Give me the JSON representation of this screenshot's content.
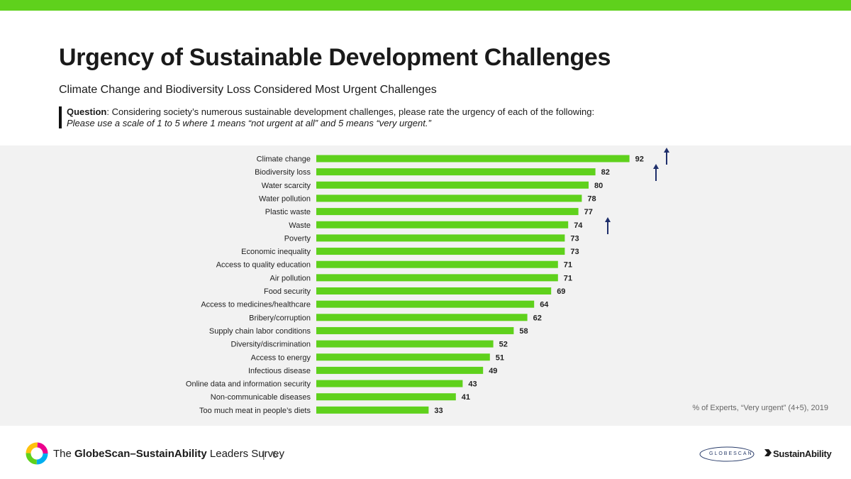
{
  "header": {
    "title": "Urgency of Sustainable Development Challenges",
    "subtitle": "Climate Change and Biodiversity Loss Considered Most Urgent Challenges",
    "question_label": "Question",
    "question_text": ": Considering society’s numerous sustainable development challenges, please rate the urgency of each of the following:",
    "question_note": "Please use a scale of 1 to 5 where 1 means “not urgent at all” and 5 means “very urgent.”"
  },
  "chart_data": {
    "type": "bar",
    "orientation": "horizontal",
    "categories": [
      "Climate change",
      "Biodiversity loss",
      "Water scarcity",
      "Water pollution",
      "Plastic waste",
      "Waste",
      "Poverty",
      "Economic inequality",
      "Access to quality education",
      "Air pollution",
      "Food security",
      "Access to medicines/healthcare",
      "Bribery/corruption",
      "Supply chain labor conditions",
      "Diversity/discrimination",
      "Access to energy",
      "Infectious disease",
      "Online data and information security",
      "Non-communicable diseases",
      "Too much meat in people’s diets"
    ],
    "values": [
      92,
      82,
      80,
      78,
      77,
      74,
      73,
      73,
      71,
      71,
      69,
      64,
      62,
      58,
      52,
      51,
      49,
      43,
      41,
      33
    ],
    "value_labels": [
      "92",
      "82",
      "80",
      "78",
      "77",
      "74",
      "73",
      "73",
      "71",
      "71",
      "69",
      "64",
      "62",
      "58",
      "52",
      "51",
      "49",
      "43",
      "41",
      "33"
    ],
    "xlim": [
      0,
      100
    ],
    "trend_up": [
      "Climate change",
      "Biodiversity loss",
      "Waste"
    ],
    "bar_color": "#5fd11c",
    "arrow_color": "#1f2f6b",
    "note": "% of Experts, “Very urgent” (4+5), 2019"
  },
  "footer": {
    "survey_prefix": "The ",
    "survey_brand": "GlobeScan–SustainAbility",
    "survey_suffix": " Leaders Survey",
    "separator": "|",
    "page_number": "6",
    "logo_globescan": "GLOBESCAN",
    "logo_sustainability": "SustainAbility"
  },
  "colors": {
    "accent": "#5fd11c",
    "panel": "#f2f2f2"
  }
}
